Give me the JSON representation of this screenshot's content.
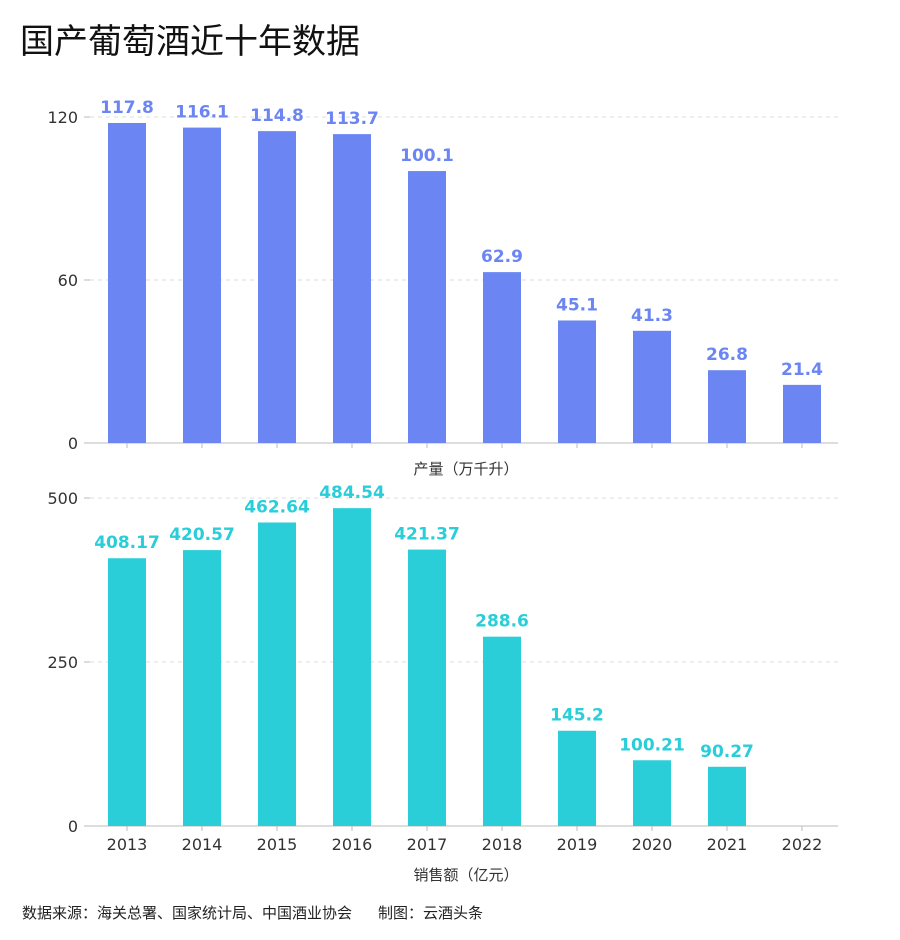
{
  "title": "国产葡萄酒近十年数据",
  "footer": {
    "source": "数据来源：海关总署、国家统计局、中国酒业协会",
    "credit": "制图：云酒头条"
  },
  "colors": {
    "production": "#6b86f2",
    "sales": "#29ced9",
    "grid": "#dddddd",
    "axis": "#bbbbbb"
  },
  "chart_data": [
    {
      "type": "bar",
      "title": "",
      "xlabel": "产量（万千升）",
      "ylabel": "",
      "categories": [
        "2013",
        "2014",
        "2015",
        "2016",
        "2017",
        "2018",
        "2019",
        "2020",
        "2021",
        "2022"
      ],
      "values": [
        117.8,
        116.1,
        114.8,
        113.7,
        100.1,
        62.9,
        45.1,
        41.3,
        26.8,
        21.4
      ],
      "labels": [
        "117.8",
        "116.1",
        "114.8",
        "113.7",
        "100.1",
        "62.9",
        "45.1",
        "41.3",
        "26.8",
        "21.4"
      ],
      "ylim": [
        0,
        120
      ],
      "yticks": [
        0,
        60,
        120
      ],
      "grid": true
    },
    {
      "type": "bar",
      "title": "",
      "xlabel": "销售额（亿元）",
      "ylabel": "",
      "categories": [
        "2013",
        "2014",
        "2015",
        "2016",
        "2017",
        "2018",
        "2019",
        "2020",
        "2021",
        "2022"
      ],
      "values": [
        408.17,
        420.57,
        462.64,
        484.54,
        421.37,
        288.6,
        145.2,
        100.21,
        90.27,
        null
      ],
      "labels": [
        "408.17",
        "420.57",
        "462.64",
        "484.54",
        "421.37",
        "288.6",
        "145.2",
        "100.21",
        "90.27",
        ""
      ],
      "ylim": [
        0,
        500
      ],
      "yticks": [
        0,
        250,
        500
      ],
      "grid": true
    }
  ]
}
